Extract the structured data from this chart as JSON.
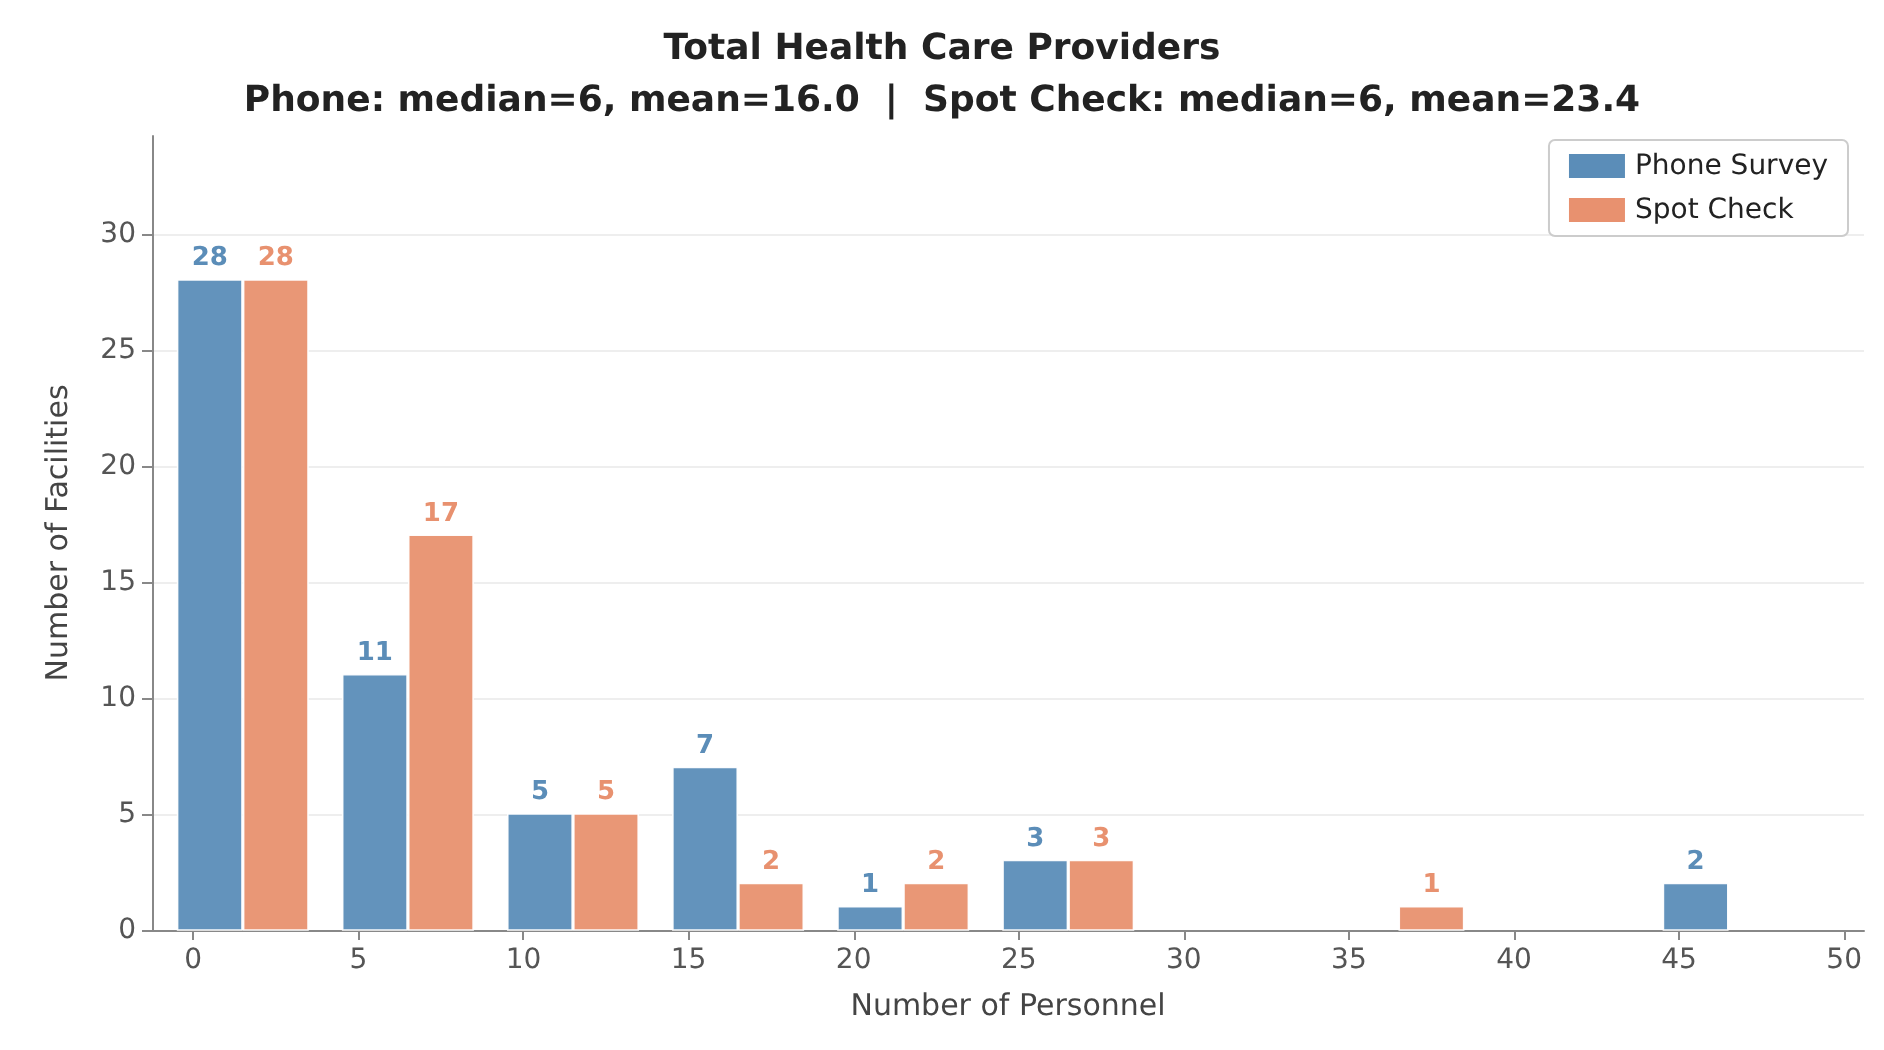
{
  "chart_data": {
    "type": "bar",
    "title": "Total Health Care Providers",
    "subtitle": "Phone: median=6, mean=16.0  |  Spot Check: median=6, mean=23.4",
    "xlabel": "Number of Personnel",
    "ylabel": "Number of Facilities",
    "series": [
      {
        "name": "Phone Survey",
        "color": "#5b8db8",
        "x": [
          0.5,
          5.5,
          10.5,
          15.5,
          20.5,
          25.5,
          45.5
        ],
        "values": [
          28,
          11,
          5,
          7,
          1,
          3,
          2
        ]
      },
      {
        "name": "Spot Check",
        "color": "#e8916f",
        "x": [
          2.5,
          7.5,
          12.5,
          17.5,
          22.5,
          27.5,
          37.5
        ],
        "values": [
          28,
          17,
          5,
          2,
          2,
          3,
          1
        ]
      }
    ],
    "xlim": [
      -1.25,
      50.6
    ],
    "xticks": [
      0,
      5,
      10,
      15,
      20,
      25,
      30,
      35,
      40,
      45,
      50
    ],
    "ylim": [
      0,
      34.2
    ],
    "yticks": [
      0,
      5,
      10,
      15,
      20,
      25,
      30
    ],
    "data_labels": true,
    "grid": "y",
    "legend": "top right"
  }
}
